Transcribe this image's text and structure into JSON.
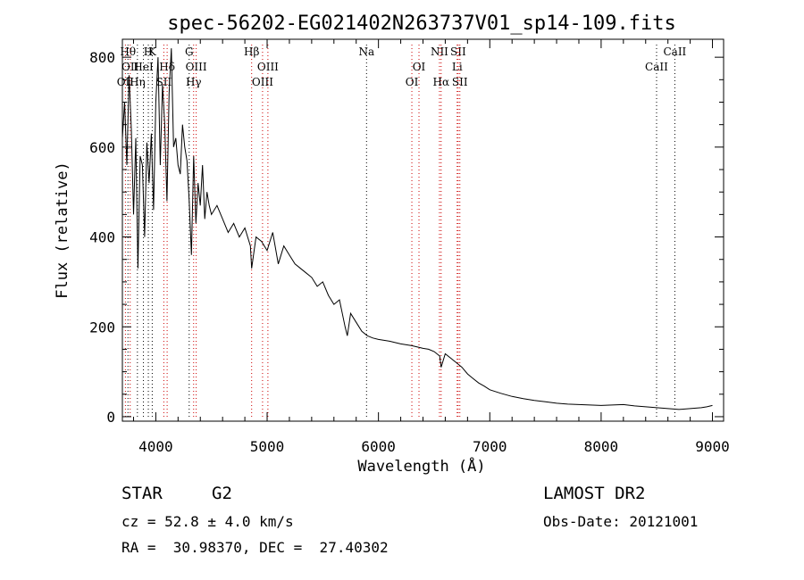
{
  "chart_data": {
    "type": "line",
    "title": "spec-56202-EG021402N263737V01_sp14-109.fits",
    "xlabel": "Wavelength (Å)",
    "ylabel": "Flux (relative)",
    "xlim": [
      3700,
      9100
    ],
    "ylim": [
      -10,
      840
    ],
    "xticks": [
      4000,
      5000,
      6000,
      7000,
      8000,
      9000
    ],
    "yticks": [
      0,
      200,
      400,
      600,
      800
    ],
    "grid": false,
    "series": [
      {
        "color": "#000000",
        "x": [
          3700,
          3720,
          3740,
          3760,
          3780,
          3800,
          3820,
          3840,
          3860,
          3880,
          3900,
          3920,
          3940,
          3960,
          3980,
          4000,
          4020,
          4040,
          4060,
          4080,
          4100,
          4120,
          4140,
          4160,
          4180,
          4200,
          4220,
          4240,
          4260,
          4280,
          4300,
          4320,
          4340,
          4360,
          4380,
          4400,
          4420,
          4440,
          4460,
          4480,
          4500,
          4550,
          4600,
          4650,
          4700,
          4750,
          4800,
          4850,
          4861,
          4900,
          4950,
          5000,
          5050,
          5100,
          5150,
          5200,
          5250,
          5300,
          5350,
          5400,
          5450,
          5500,
          5550,
          5600,
          5650,
          5700,
          5720,
          5750,
          5800,
          5850,
          5900,
          5950,
          6000,
          6050,
          6100,
          6150,
          6200,
          6250,
          6300,
          6350,
          6400,
          6450,
          6500,
          6550,
          6563,
          6600,
          6650,
          6700,
          6750,
          6800,
          6850,
          6900,
          6950,
          7000,
          7100,
          7200,
          7300,
          7400,
          7500,
          7600,
          7700,
          7800,
          7900,
          8000,
          8100,
          8200,
          8300,
          8400,
          8500,
          8600,
          8700,
          8800,
          8900,
          8950,
          9000
        ],
        "y": [
          620,
          700,
          560,
          760,
          640,
          450,
          620,
          330,
          580,
          560,
          400,
          610,
          520,
          630,
          460,
          700,
          800,
          560,
          740,
          650,
          480,
          720,
          820,
          600,
          620,
          560,
          540,
          650,
          600,
          570,
          480,
          360,
          580,
          430,
          520,
          470,
          560,
          440,
          500,
          470,
          450,
          470,
          440,
          410,
          430,
          400,
          420,
          380,
          330,
          400,
          390,
          370,
          410,
          340,
          380,
          360,
          340,
          330,
          320,
          310,
          290,
          300,
          270,
          250,
          260,
          200,
          180,
          230,
          210,
          190,
          180,
          175,
          172,
          170,
          168,
          165,
          162,
          160,
          158,
          155,
          152,
          150,
          145,
          135,
          110,
          140,
          130,
          120,
          110,
          95,
          85,
          75,
          68,
          60,
          52,
          45,
          40,
          36,
          33,
          30,
          28,
          27,
          26,
          25,
          26,
          27,
          24,
          22,
          20,
          18,
          16,
          18,
          20,
          22,
          25
        ]
      }
    ],
    "lines": [
      {
        "x": 3727,
        "label": "OII",
        "row": 2
      },
      {
        "x": 3750,
        "label": "Hθ",
        "row": 0
      },
      {
        "x": 3770,
        "label": "OII",
        "row": 1
      },
      {
        "x": 3835,
        "label": "Hη",
        "row": 2
      },
      {
        "x": 3889,
        "label": "HeI",
        "row": 1
      },
      {
        "x": 3933,
        "label": "H",
        "row": 0
      },
      {
        "x": 3968,
        "label": "K",
        "row": 0
      },
      {
        "x": 4072,
        "label": "SII",
        "row": 2
      },
      {
        "x": 4102,
        "label": "Hδ",
        "row": 1
      },
      {
        "x": 4300,
        "label": "G",
        "row": 0
      },
      {
        "x": 4340,
        "label": "Hγ",
        "row": 2
      },
      {
        "x": 4363,
        "label": "OIII",
        "row": 1
      },
      {
        "x": 4861,
        "label": "Hβ",
        "row": 0
      },
      {
        "x": 4959,
        "label": "OIII",
        "row": 2
      },
      {
        "x": 5007,
        "label": "OIII",
        "row": 1
      },
      {
        "x": 5893,
        "label": "Na",
        "row": 0
      },
      {
        "x": 6300,
        "label": "OI",
        "row": 2
      },
      {
        "x": 6364,
        "label": "OI",
        "row": 1
      },
      {
        "x": 6548,
        "label": "NII",
        "row": 0
      },
      {
        "x": 6563,
        "label": "Hα",
        "row": 2
      },
      {
        "x": 6707,
        "label": "Li",
        "row": 1
      },
      {
        "x": 6716,
        "label": "SII",
        "row": 0
      },
      {
        "x": 6731,
        "label": "SII",
        "row": 2
      },
      {
        "x": 8498,
        "label": "CaII",
        "row": 1
      },
      {
        "x": 8662,
        "label": "CaII",
        "row": 0
      }
    ],
    "line_colors": {
      "emission": "#cc0000",
      "absorption": "#000000"
    }
  },
  "info": {
    "object_class": "STAR",
    "subclass": "G2",
    "survey": "LAMOST DR2",
    "redshift": "cz = 52.8 ± 4.0 km/s",
    "obs_date": "Obs-Date: 20121001",
    "coords": "RA =  30.98370, DEC =  27.40302"
  }
}
